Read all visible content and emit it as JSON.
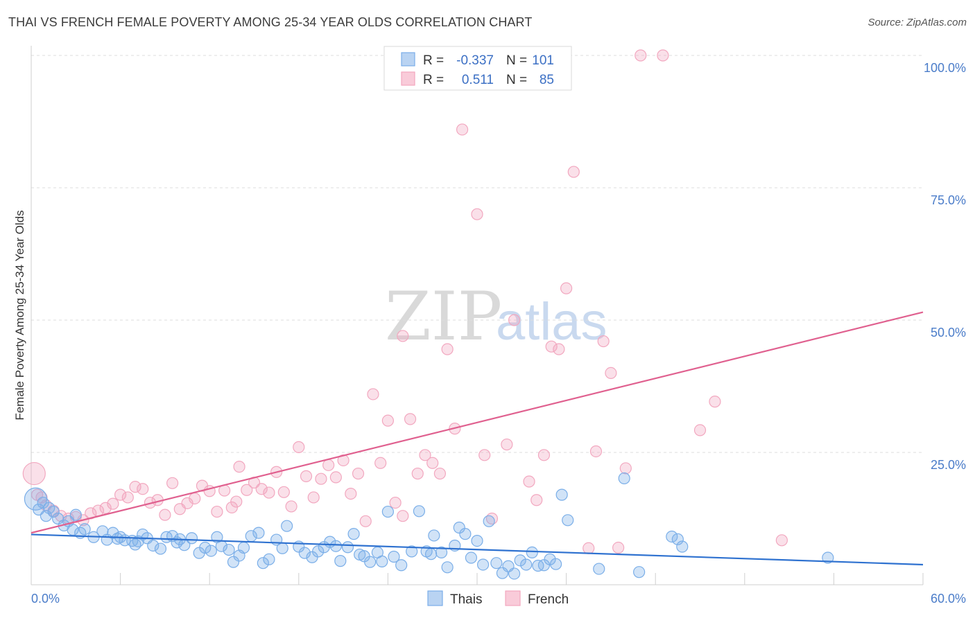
{
  "title": "THAI VS FRENCH FEMALE POVERTY AMONG 25-34 YEAR OLDS CORRELATION CHART",
  "source": "Source: ZipAtlas.com",
  "watermark": {
    "zip": "ZIP",
    "atlas": "atlas"
  },
  "chart_data": {
    "type": "scatter",
    "xlabel": "",
    "ylabel": "Female Poverty Among 25-34 Year Olds",
    "xlim": [
      0,
      60
    ],
    "ylim": [
      0,
      100
    ],
    "x_tick_labels": [
      {
        "value": 0,
        "label": "0.0%"
      },
      {
        "value": 60,
        "label": "60.0%"
      }
    ],
    "y_tick_labels": [
      {
        "value": 25,
        "label": "25.0%"
      },
      {
        "value": 50,
        "label": "50.0%"
      },
      {
        "value": 75,
        "label": "75.0%"
      },
      {
        "value": 100,
        "label": "100.0%"
      }
    ],
    "colors": {
      "thais": "#7aaee8",
      "thais_line": "#2f72d0",
      "french": "#f2a7bf",
      "french_line": "#e0608f"
    },
    "legend": {
      "rows": [
        {
          "r_label": "R =",
          "r": "-0.337",
          "n_label": "N =",
          "n": "101"
        },
        {
          "r_label": "R =",
          "r": "0.511",
          "n_label": "N =",
          "n": "85"
        }
      ]
    },
    "bottom_legend": [
      "Thais",
      "French"
    ],
    "series": [
      {
        "name": "Thais",
        "trend": {
          "x": [
            0,
            60
          ],
          "y": [
            9.5,
            3.8
          ]
        },
        "points": [
          [
            0.3,
            16.2
          ],
          [
            0.8,
            15.5
          ],
          [
            1.2,
            14.5
          ],
          [
            1.5,
            13.8
          ],
          [
            1.8,
            12.5
          ],
          [
            2.2,
            11.2
          ],
          [
            2.5,
            12.0
          ],
          [
            3.0,
            13.2
          ],
          [
            3.3,
            9.8
          ],
          [
            3.6,
            10.5
          ],
          [
            4.2,
            9.0
          ],
          [
            4.8,
            10.1
          ],
          [
            5.1,
            8.5
          ],
          [
            5.5,
            9.8
          ],
          [
            6.0,
            9.0
          ],
          [
            6.3,
            8.4
          ],
          [
            6.8,
            8.3
          ],
          [
            7.2,
            8.2
          ],
          [
            7.5,
            9.5
          ],
          [
            7.8,
            8.8
          ],
          [
            8.2,
            7.4
          ],
          [
            8.7,
            6.8
          ],
          [
            9.1,
            9.0
          ],
          [
            9.5,
            9.2
          ],
          [
            9.8,
            8.0
          ],
          [
            10.3,
            7.5
          ],
          [
            10.8,
            8.8
          ],
          [
            11.3,
            6.0
          ],
          [
            11.7,
            7.0
          ],
          [
            12.1,
            6.4
          ],
          [
            12.5,
            9.0
          ],
          [
            12.8,
            7.3
          ],
          [
            13.3,
            6.6
          ],
          [
            13.6,
            4.3
          ],
          [
            14.0,
            5.5
          ],
          [
            14.3,
            7.0
          ],
          [
            14.8,
            9.2
          ],
          [
            15.3,
            9.8
          ],
          [
            15.6,
            4.1
          ],
          [
            16.0,
            4.8
          ],
          [
            16.5,
            8.5
          ],
          [
            16.9,
            6.9
          ],
          [
            17.2,
            11.1
          ],
          [
            18.0,
            7.2
          ],
          [
            18.4,
            6.0
          ],
          [
            18.9,
            5.2
          ],
          [
            19.3,
            6.3
          ],
          [
            19.7,
            7.1
          ],
          [
            20.1,
            8.1
          ],
          [
            20.5,
            7.3
          ],
          [
            20.8,
            4.5
          ],
          [
            21.3,
            7.1
          ],
          [
            21.7,
            9.6
          ],
          [
            22.1,
            5.7
          ],
          [
            22.4,
            5.4
          ],
          [
            22.8,
            4.3
          ],
          [
            23.3,
            6.1
          ],
          [
            23.6,
            4.4
          ],
          [
            24.0,
            13.8
          ],
          [
            24.4,
            5.3
          ],
          [
            24.9,
            3.7
          ],
          [
            25.6,
            6.3
          ],
          [
            26.1,
            13.9
          ],
          [
            26.6,
            6.3
          ],
          [
            26.9,
            5.8
          ],
          [
            27.1,
            9.3
          ],
          [
            27.6,
            6.1
          ],
          [
            28.0,
            3.3
          ],
          [
            28.5,
            7.4
          ],
          [
            28.8,
            10.8
          ],
          [
            29.2,
            9.6
          ],
          [
            29.6,
            5.1
          ],
          [
            30.0,
            8.3
          ],
          [
            30.4,
            3.8
          ],
          [
            30.8,
            12.0
          ],
          [
            31.3,
            4.1
          ],
          [
            31.7,
            2.2
          ],
          [
            32.1,
            3.5
          ],
          [
            32.5,
            2.1
          ],
          [
            32.9,
            4.6
          ],
          [
            33.3,
            3.8
          ],
          [
            33.7,
            6.1
          ],
          [
            34.1,
            3.6
          ],
          [
            34.5,
            3.7
          ],
          [
            34.9,
            4.8
          ],
          [
            35.3,
            3.9
          ],
          [
            35.7,
            17.0
          ],
          [
            36.1,
            12.2
          ],
          [
            38.2,
            3.0
          ],
          [
            39.9,
            20.1
          ],
          [
            40.9,
            2.4
          ],
          [
            43.1,
            9.1
          ],
          [
            43.5,
            8.6
          ],
          [
            43.8,
            7.2
          ],
          [
            53.6,
            5.1
          ],
          [
            0.5,
            14.2
          ],
          [
            1.0,
            13.0
          ],
          [
            2.8,
            10.4
          ],
          [
            5.8,
            8.7
          ],
          [
            7.0,
            7.6
          ],
          [
            10.0,
            8.6
          ]
        ]
      },
      {
        "name": "French",
        "trend": {
          "x": [
            0,
            60
          ],
          "y": [
            9.8,
            51.5
          ]
        },
        "points": [
          [
            0.2,
            21.0
          ],
          [
            0.4,
            17.0
          ],
          [
            0.7,
            16.5
          ],
          [
            1.0,
            15.0
          ],
          [
            1.5,
            14.0
          ],
          [
            2.0,
            13.0
          ],
          [
            2.5,
            12.5
          ],
          [
            3.0,
            12.8
          ],
          [
            3.5,
            12.2
          ],
          [
            4.0,
            13.5
          ],
          [
            4.5,
            14.0
          ],
          [
            5.0,
            14.5
          ],
          [
            5.5,
            15.3
          ],
          [
            6.0,
            17.0
          ],
          [
            6.5,
            16.5
          ],
          [
            7.0,
            18.5
          ],
          [
            7.5,
            18.1
          ],
          [
            8.0,
            15.5
          ],
          [
            8.5,
            16.0
          ],
          [
            9.0,
            13.2
          ],
          [
            9.5,
            19.2
          ],
          [
            10.0,
            14.3
          ],
          [
            10.5,
            15.4
          ],
          [
            11.0,
            16.3
          ],
          [
            11.5,
            18.7
          ],
          [
            12.0,
            17.7
          ],
          [
            12.5,
            13.8
          ],
          [
            13.0,
            17.8
          ],
          [
            13.5,
            14.6
          ],
          [
            14.0,
            22.3
          ],
          [
            14.5,
            17.9
          ],
          [
            15.0,
            19.3
          ],
          [
            15.5,
            18.1
          ],
          [
            16.0,
            17.4
          ],
          [
            16.5,
            21.3
          ],
          [
            17.0,
            17.5
          ],
          [
            17.5,
            14.8
          ],
          [
            18.0,
            26.0
          ],
          [
            18.5,
            20.5
          ],
          [
            19.0,
            16.5
          ],
          [
            19.5,
            20.0
          ],
          [
            20.0,
            22.6
          ],
          [
            20.5,
            20.3
          ],
          [
            21.0,
            23.5
          ],
          [
            21.5,
            17.2
          ],
          [
            22.0,
            21.0
          ],
          [
            22.5,
            12.0
          ],
          [
            23.0,
            36.0
          ],
          [
            23.5,
            23.0
          ],
          [
            24.0,
            31.0
          ],
          [
            24.5,
            15.5
          ],
          [
            25.0,
            13.0
          ],
          [
            25.5,
            31.3
          ],
          [
            26.0,
            21.0
          ],
          [
            26.5,
            24.5
          ],
          [
            27.0,
            23.0
          ],
          [
            27.5,
            21.0
          ],
          [
            28.0,
            44.5
          ],
          [
            28.5,
            29.5
          ],
          [
            29.0,
            86.0
          ],
          [
            30.0,
            70.0
          ],
          [
            30.5,
            24.5
          ],
          [
            31.0,
            12.5
          ],
          [
            32.0,
            26.5
          ],
          [
            32.5,
            50.0
          ],
          [
            33.5,
            19.5
          ],
          [
            34.0,
            16.0
          ],
          [
            34.5,
            24.5
          ],
          [
            35.0,
            45.0
          ],
          [
            35.5,
            44.5
          ],
          [
            36.0,
            56.0
          ],
          [
            36.5,
            78.0
          ],
          [
            38.0,
            25.2
          ],
          [
            38.5,
            46.0
          ],
          [
            39.0,
            40.0
          ],
          [
            39.5,
            7.0
          ],
          [
            40.0,
            22.0
          ],
          [
            41.0,
            100.0
          ],
          [
            42.5,
            100.0
          ],
          [
            45.0,
            29.2
          ],
          [
            46.0,
            34.6
          ],
          [
            50.5,
            8.4
          ],
          [
            25.0,
            47.0
          ],
          [
            37.5,
            6.9
          ],
          [
            13.8,
            15.7
          ]
        ]
      }
    ]
  }
}
